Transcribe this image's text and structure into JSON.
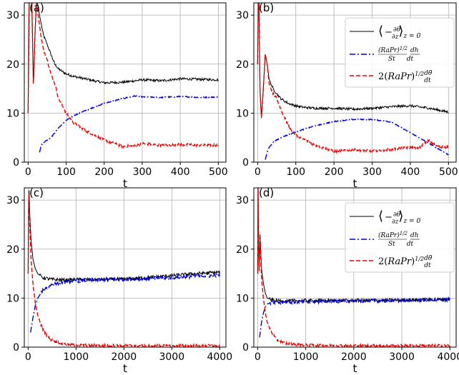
{
  "chart_data": [
    {
      "type": "line",
      "panel_label": "(a)",
      "xlabel": "t",
      "ylabel": "",
      "xlim": [
        -10,
        520
      ],
      "ylim": [
        0,
        32.5
      ],
      "xticks": [
        0,
        100,
        200,
        300,
        400,
        500
      ],
      "yticks": [
        0,
        10,
        20,
        30
      ],
      "grid": true,
      "legend": "none",
      "series": [
        {
          "key": "nusselt",
          "color": "#000000",
          "dash": "solid",
          "x": [
            0,
            3,
            6,
            10,
            14,
            18,
            22,
            26,
            30,
            35,
            40,
            50,
            60,
            70,
            80,
            100,
            120,
            150,
            180,
            200,
            250,
            300,
            350,
            400,
            450,
            500
          ],
          "y": [
            10,
            33,
            38,
            32,
            15,
            26,
            33,
            32,
            30,
            28,
            26,
            24,
            22,
            20,
            19,
            18,
            17.5,
            17,
            16.5,
            16.2,
            16.3,
            16.8,
            16.6,
            17.0,
            16.9,
            16.8
          ]
        },
        {
          "key": "height",
          "color": "#0000dd",
          "dash": "dashdot",
          "x": [
            30,
            35,
            40,
            60,
            80,
            100,
            120,
            150,
            200,
            250,
            280,
            300,
            350,
            400,
            450,
            500
          ],
          "y": [
            2.0,
            3.5,
            4.0,
            5.0,
            7.0,
            8.5,
            9.5,
            10.5,
            12.0,
            13.0,
            13.5,
            13.3,
            13.2,
            13.4,
            13.2,
            13.3
          ]
        },
        {
          "key": "temperature",
          "color": "#ee0000",
          "dash": "dashed",
          "x": [
            0,
            3,
            6,
            10,
            14,
            18,
            22,
            26,
            30,
            35,
            40,
            50,
            60,
            70,
            80,
            100,
            120,
            150,
            200,
            250,
            280,
            300,
            350,
            400,
            450,
            500
          ],
          "y": [
            10,
            33,
            38,
            32,
            15,
            26,
            33,
            30,
            28,
            25,
            23,
            21,
            18,
            16,
            13,
            10,
            8,
            6.5,
            4.5,
            3.2,
            3.3,
            3.8,
            3.4,
            3.6,
            3.5,
            3.4
          ]
        }
      ]
    },
    {
      "type": "line",
      "panel_label": "(b)",
      "xlabel": "t",
      "ylabel": "",
      "xlim": [
        -10,
        520
      ],
      "ylim": [
        0,
        32.5
      ],
      "xticks": [
        0,
        100,
        200,
        300,
        400,
        500
      ],
      "yticks": [
        0,
        10,
        20,
        30
      ],
      "grid": true,
      "legend": "top-right",
      "series": [
        {
          "key": "nusselt",
          "color": "#000000",
          "dash": "solid",
          "x": [
            0,
            3,
            6,
            10,
            15,
            20,
            25,
            30,
            40,
            50,
            60,
            80,
            100,
            120,
            150,
            200,
            250,
            300,
            350,
            400,
            450,
            500
          ],
          "y": [
            20,
            40,
            15,
            9,
            15,
            22,
            20,
            17,
            15,
            14,
            13,
            12,
            11.5,
            11.2,
            11,
            11,
            10.8,
            11,
            11.3,
            11.5,
            11,
            10.2
          ]
        },
        {
          "key": "height",
          "color": "#0000dd",
          "dash": "dashdot",
          "x": [
            20,
            25,
            30,
            40,
            60,
            100,
            150,
            200,
            250,
            300,
            350,
            400,
            450,
            500
          ],
          "y": [
            0.5,
            2.0,
            3.0,
            4.0,
            5.0,
            6.2,
            7.4,
            8.3,
            8.7,
            8.7,
            8.2,
            6.0,
            3.8,
            1.5
          ]
        },
        {
          "key": "temperature",
          "color": "#ee0000",
          "dash": "dashed",
          "x": [
            0,
            3,
            6,
            10,
            15,
            20,
            25,
            30,
            40,
            50,
            60,
            80,
            100,
            150,
            200,
            250,
            300,
            350,
            400,
            420,
            450,
            470,
            500
          ],
          "y": [
            20,
            40,
            15,
            9,
            15,
            22,
            20,
            16,
            14,
            13,
            11,
            7.5,
            5.5,
            3.5,
            2.2,
            2.5,
            2.3,
            2.6,
            3.0,
            2.8,
            4.5,
            3.2,
            3.0
          ]
        }
      ]
    },
    {
      "type": "line",
      "panel_label": "(c)",
      "xlabel": "t",
      "ylabel": "",
      "xlim": [
        -80,
        4130
      ],
      "ylim": [
        0,
        32.5
      ],
      "xticks": [
        0,
        1000,
        2000,
        3000,
        4000
      ],
      "yticks": [
        0,
        10,
        20,
        30
      ],
      "grid": true,
      "legend": "none",
      "series": [
        {
          "key": "nusselt",
          "color": "#000000",
          "dash": "solid",
          "x": [
            0,
            15,
            30,
            60,
            100,
            150,
            200,
            300,
            500,
            800,
            1000,
            1500,
            2000,
            2500,
            3000,
            3500,
            4000
          ],
          "y": [
            15,
            34,
            28,
            22,
            18,
            16,
            15,
            14.2,
            13.8,
            13.7,
            13.8,
            13.8,
            13.9,
            14.2,
            14.6,
            15.0,
            15.3
          ]
        },
        {
          "key": "height",
          "color": "#0000dd",
          "dash": "dashdot",
          "x": [
            50,
            100,
            150,
            200,
            300,
            400,
            500,
            700,
            1000,
            1500,
            2000,
            2500,
            3000,
            3500,
            4000
          ],
          "y": [
            3.0,
            6.0,
            8.5,
            10.0,
            11.5,
            12.3,
            12.8,
            13.2,
            13.5,
            13.7,
            13.8,
            14.0,
            14.2,
            14.5,
            14.6
          ]
        },
        {
          "key": "temperature",
          "color": "#ee0000",
          "dash": "dashed",
          "x": [
            0,
            15,
            30,
            60,
            100,
            150,
            200,
            300,
            400,
            500,
            700,
            1000,
            2000,
            3000,
            4000
          ],
          "y": [
            15,
            34,
            26,
            18,
            13,
            9,
            6.5,
            3.8,
            2.2,
            1.4,
            0.7,
            0.4,
            0.3,
            0.3,
            0.3
          ]
        }
      ]
    },
    {
      "type": "line",
      "panel_label": "(d)",
      "xlabel": "t",
      "ylabel": "",
      "xlim": [
        -80,
        4130
      ],
      "ylim": [
        0,
        32.5
      ],
      "xticks": [
        0,
        1000,
        2000,
        3000,
        4000
      ],
      "yticks": [
        0,
        10,
        20,
        30
      ],
      "grid": true,
      "legend": "top-right",
      "series": [
        {
          "key": "nusselt",
          "color": "#000000",
          "dash": "solid",
          "x": [
            0,
            10,
            25,
            50,
            80,
            120,
            160,
            200,
            300,
            500,
            1000,
            2000,
            3000,
            4000
          ],
          "y": [
            15,
            34,
            14,
            23,
            16,
            13,
            11,
            10,
            9.6,
            9.4,
            9.5,
            9.5,
            9.6,
            9.8
          ]
        },
        {
          "key": "height",
          "color": "#0000dd",
          "dash": "dashdot",
          "x": [
            40,
            80,
            120,
            160,
            200,
            300,
            500,
            1000,
            2000,
            3000,
            4000
          ],
          "y": [
            2.0,
            5.0,
            7.0,
            8.2,
            8.8,
            9.1,
            9.2,
            9.3,
            9.4,
            9.5,
            9.7
          ]
        },
        {
          "key": "temperature",
          "color": "#ee0000",
          "dash": "dashed",
          "x": [
            0,
            10,
            25,
            50,
            80,
            120,
            160,
            200,
            300,
            400,
            500,
            700,
            1000,
            2000,
            3000,
            4000
          ],
          "y": [
            15,
            34,
            14,
            22,
            14,
            10,
            7,
            5,
            2.8,
            1.5,
            1.0,
            0.6,
            0.4,
            0.3,
            0.3,
            0.3
          ]
        }
      ]
    }
  ]
}
